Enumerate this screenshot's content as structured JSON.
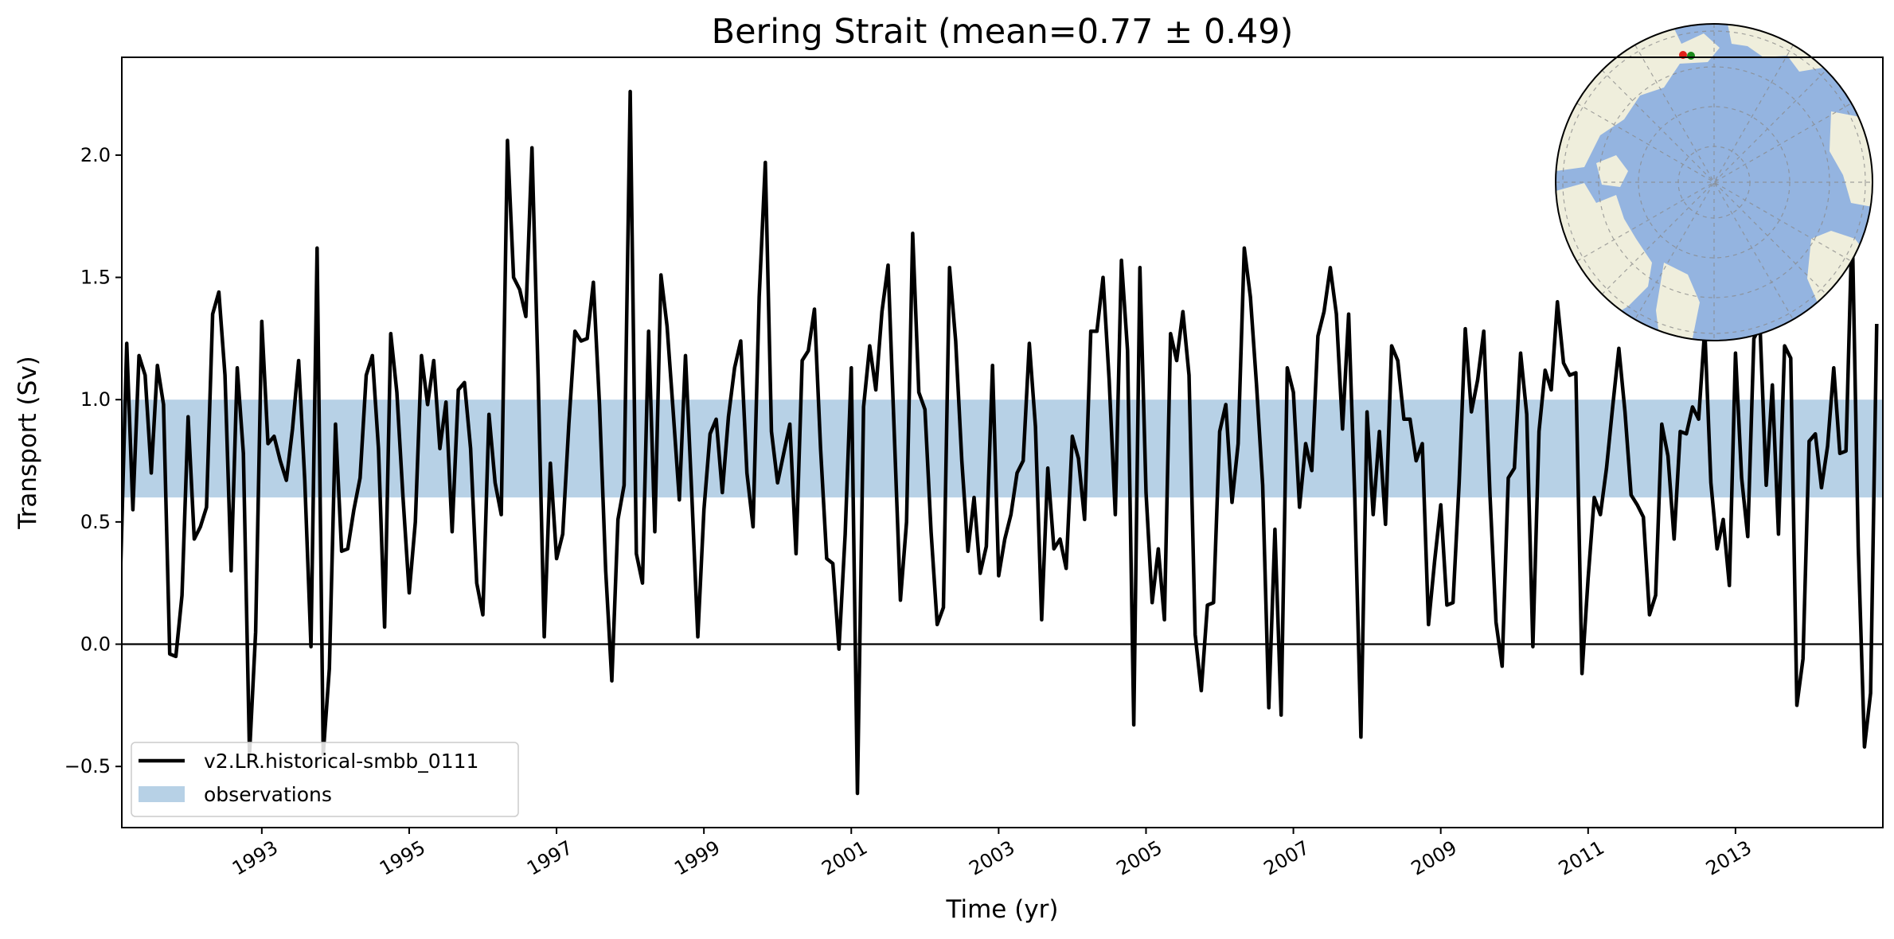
{
  "chart_data": {
    "type": "line",
    "title": "Bering Strait (mean=0.77 ± 0.49)",
    "xlabel": "Time (yr)",
    "ylabel": "Transport (Sv)",
    "xlim": [
      1991.1,
      2015.0
    ],
    "ylim": [
      -0.75,
      2.4
    ],
    "y_ticks": [
      {
        "value": -0.5,
        "label": "−0.5"
      },
      {
        "value": 0.0,
        "label": "0.0"
      },
      {
        "value": 0.5,
        "label": "0.5"
      },
      {
        "value": 1.0,
        "label": "1.0"
      },
      {
        "value": 1.5,
        "label": "1.5"
      },
      {
        "value": 2.0,
        "label": "2.0"
      }
    ],
    "x_ticks": [
      {
        "value": 1993,
        "label": "1993"
      },
      {
        "value": 1995,
        "label": "1995"
      },
      {
        "value": 1997,
        "label": "1997"
      },
      {
        "value": 1999,
        "label": "1999"
      },
      {
        "value": 2001,
        "label": "2001"
      },
      {
        "value": 2003,
        "label": "2003"
      },
      {
        "value": 2005,
        "label": "2005"
      },
      {
        "value": 2007,
        "label": "2007"
      },
      {
        "value": 2009,
        "label": "2009"
      },
      {
        "value": 2011,
        "label": "2011"
      },
      {
        "value": 2013,
        "label": "2013"
      }
    ],
    "zero_line": 0.0,
    "observations_band": [
      0.6,
      1.0
    ],
    "series": [
      {
        "name": "v2.LR.historical-smbb_0111",
        "color": "#000000",
        "x_start": 1991.0,
        "x_step": 0.0833333,
        "values": [
          0.55,
          0.3,
          1.23,
          0.55,
          1.18,
          1.1,
          0.7,
          1.14,
          0.98,
          -0.04,
          -0.05,
          0.2,
          0.93,
          0.43,
          0.48,
          0.56,
          1.35,
          1.44,
          1.1,
          0.3,
          1.13,
          0.78,
          -0.45,
          0.05,
          1.32,
          0.82,
          0.85,
          0.75,
          0.67,
          0.88,
          1.16,
          0.67,
          -0.01,
          1.62,
          -0.45,
          -0.1,
          0.9,
          0.38,
          0.39,
          0.55,
          0.68,
          1.1,
          1.18,
          0.8,
          0.07,
          1.27,
          1.03,
          0.6,
          0.21,
          0.5,
          1.18,
          0.98,
          1.16,
          0.8,
          0.99,
          0.46,
          1.04,
          1.07,
          0.8,
          0.25,
          0.12,
          0.94,
          0.66,
          0.53,
          2.06,
          1.5,
          1.45,
          1.34,
          2.03,
          1.1,
          0.03,
          0.74,
          0.35,
          0.45,
          0.9,
          1.28,
          1.24,
          1.25,
          1.48,
          0.98,
          0.3,
          -0.15,
          0.51,
          0.65,
          2.26,
          0.37,
          0.25,
          1.28,
          0.46,
          1.51,
          1.3,
          0.95,
          0.59,
          1.18,
          0.63,
          0.03,
          0.55,
          0.86,
          0.92,
          0.62,
          0.93,
          1.13,
          1.24,
          0.7,
          0.48,
          1.42,
          1.97,
          0.87,
          0.66,
          0.78,
          0.9,
          0.37,
          1.16,
          1.2,
          1.37,
          0.8,
          0.35,
          0.33,
          -0.02,
          0.45,
          1.13,
          -0.61,
          0.97,
          1.22,
          1.04,
          1.36,
          1.55,
          0.86,
          0.18,
          0.5,
          1.68,
          1.03,
          0.96,
          0.46,
          0.08,
          0.15,
          1.54,
          1.24,
          0.75,
          0.38,
          0.6,
          0.29,
          0.4,
          1.14,
          0.28,
          0.43,
          0.53,
          0.7,
          0.75,
          1.23,
          0.89,
          0.1,
          0.72,
          0.39,
          0.43,
          0.31,
          0.85,
          0.76,
          0.51,
          1.28,
          1.28,
          1.5,
          1.08,
          0.53,
          1.57,
          1.2,
          -0.33,
          1.54,
          0.62,
          0.17,
          0.39,
          0.1,
          1.27,
          1.16,
          1.36,
          1.1,
          0.04,
          -0.19,
          0.16,
          0.17,
          0.87,
          0.98,
          0.58,
          0.82,
          1.62,
          1.42,
          1.06,
          0.65,
          -0.26,
          0.47,
          -0.29,
          1.13,
          1.03,
          0.56,
          0.82,
          0.71,
          1.26,
          1.36,
          1.54,
          1.35,
          0.88,
          1.35,
          0.6,
          -0.38,
          0.95,
          0.53,
          0.87,
          0.49,
          1.22,
          1.16,
          0.92,
          0.92,
          0.75,
          0.82,
          0.08,
          0.34,
          0.57,
          0.16,
          0.17,
          0.66,
          1.29,
          0.95,
          1.08,
          1.28,
          0.62,
          0.09,
          -0.09,
          0.68,
          0.72,
          1.19,
          0.94,
          -0.01,
          0.87,
          1.12,
          1.04,
          1.4,
          1.15,
          1.1,
          1.11,
          -0.12,
          0.27,
          0.6,
          0.53,
          0.72,
          0.97,
          1.21,
          0.95,
          0.61,
          0.57,
          0.52,
          0.12,
          0.2,
          0.9,
          0.77,
          0.43,
          0.87,
          0.86,
          0.97,
          0.92,
          1.29,
          0.66,
          0.39,
          0.51,
          0.24,
          1.19,
          0.68,
          0.44,
          1.25,
          1.3,
          0.65,
          1.06,
          0.45,
          1.22,
          1.17,
          -0.25,
          -0.06,
          0.83,
          0.86,
          0.64,
          0.81,
          1.13,
          0.78,
          0.79,
          1.73,
          0.4,
          -0.42,
          -0.2,
          1.31
        ]
      }
    ],
    "legend": {
      "placement": "lower-left",
      "entries": [
        {
          "label": "v2.LR.historical-smbb_0111",
          "kind": "line",
          "color": "#000000"
        },
        {
          "label": "observations",
          "kind": "patch",
          "color": "#b7d1e6"
        }
      ]
    },
    "inset_map": {
      "projection": "north-polar-stereographic",
      "placement": "top-right",
      "ocean_color": "#94b4e0",
      "land_color": "#efeedc",
      "marker_colors": [
        "#e0201a",
        "#1b8a1b"
      ]
    }
  }
}
